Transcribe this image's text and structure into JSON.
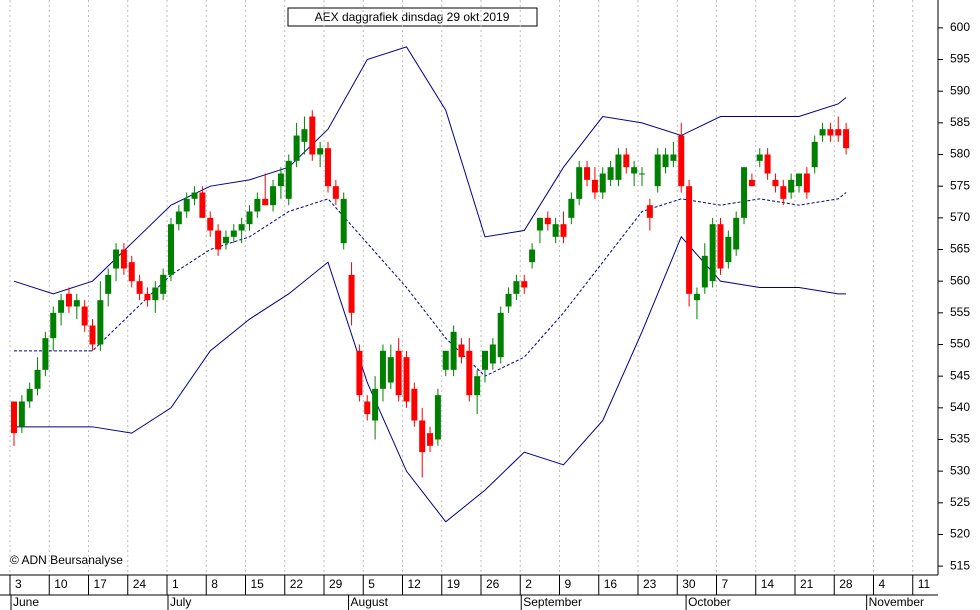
{
  "chart_data": {
    "type": "candlestick",
    "title": "AEX daggrafiek dinsdag 29 okt 2019",
    "annotation": "© ADN Beursanalyse",
    "up_color": "#008000",
    "down_color": "#ff0000",
    "grid": true,
    "categories": [
      "3",
      null,
      null,
      null,
      null,
      "10",
      null,
      null,
      null,
      null,
      "17",
      null,
      null,
      null,
      null,
      "24",
      null,
      null,
      null,
      null,
      "1",
      null,
      null,
      null,
      null,
      "8",
      null,
      null,
      null,
      null,
      "15",
      null,
      null,
      null,
      null,
      "22",
      null,
      null,
      null,
      null,
      "29",
      null,
      null,
      null,
      null,
      "5",
      null,
      null,
      null,
      null,
      "12",
      null,
      null,
      null,
      null,
      "19",
      null,
      null,
      null,
      null,
      "26",
      null,
      null,
      null,
      null,
      "2",
      null,
      null,
      null,
      null,
      "9",
      null,
      null,
      null,
      null,
      "16",
      null,
      null,
      null,
      null,
      "23",
      null,
      null,
      null,
      null,
      "30",
      null,
      null,
      null,
      null,
      "7",
      null,
      null,
      null,
      null,
      "14",
      null,
      null,
      null,
      null,
      "21",
      null,
      null,
      null,
      null,
      "28",
      null,
      null,
      null,
      null,
      "4",
      null,
      null,
      null,
      null,
      "11",
      null,
      null
    ],
    "month_ticks": [
      {
        "value": 0,
        "label": "June"
      },
      {
        "value": 20,
        "label": "July"
      },
      {
        "value": 43,
        "label": "August"
      },
      {
        "value": 65,
        "label": "September"
      },
      {
        "value": 86,
        "label": "October"
      },
      {
        "value": 109,
        "label": "November"
      }
    ],
    "open": [
      541,
      537,
      541,
      543,
      546,
      551,
      555,
      558,
      556,
      556,
      553,
      550,
      558,
      562,
      565,
      563,
      560,
      558,
      557,
      558,
      561,
      569,
      571,
      573,
      574,
      570,
      568,
      566,
      567,
      568,
      569,
      571,
      573,
      572,
      575,
      573,
      579,
      582,
      586,
      580,
      581,
      575,
      566,
      561,
      549,
      541,
      538,
      543,
      544,
      549,
      548,
      543,
      538,
      536,
      535,
      546,
      546,
      550,
      549,
      542,
      546,
      547,
      548,
      556,
      558,
      560,
      563,
      568,
      570,
      567,
      569,
      570,
      573,
      578,
      576,
      574,
      576,
      576,
      580,
      577,
      577,
      572,
      575,
      578,
      579,
      583,
      575,
      557,
      559,
      560,
      569,
      563,
      565,
      570,
      576,
      579,
      580,
      576,
      575,
      574,
      575,
      577,
      578,
      583,
      584,
      584,
      584,
      null,
      null,
      null,
      null,
      null,
      null,
      null,
      null,
      null,
      null,
      null
    ],
    "high": [
      541,
      542,
      544,
      548,
      552,
      556,
      558,
      559,
      558,
      557,
      554,
      560,
      562,
      566,
      566,
      564,
      561,
      559,
      560,
      562,
      570,
      572,
      574,
      575,
      575,
      571,
      569,
      568,
      569,
      570,
      572,
      574,
      577,
      576,
      578,
      580,
      585,
      586,
      587,
      582,
      582,
      576,
      574,
      563,
      550,
      542,
      545,
      550,
      550,
      551,
      549,
      544,
      540,
      537,
      543,
      549,
      553,
      551,
      551,
      546,
      549,
      551,
      556,
      559,
      561,
      561,
      566,
      570,
      571,
      570,
      571,
      574,
      579,
      579,
      578,
      578,
      579,
      581,
      581,
      579,
      578,
      573,
      581,
      581,
      582,
      585,
      576,
      559,
      566,
      570,
      570,
      568,
      571,
      578,
      577,
      581,
      581,
      577,
      576,
      577,
      577,
      578,
      583,
      585,
      585,
      586,
      585,
      null,
      null,
      null,
      null,
      null,
      null,
      null,
      null,
      null,
      null,
      null
    ],
    "low": [
      534,
      536,
      540,
      542,
      545,
      549,
      553,
      555,
      554,
      552,
      549,
      549,
      556,
      560,
      561,
      559,
      557,
      556,
      555,
      557,
      560,
      568,
      570,
      572,
      570,
      567,
      564,
      565,
      566,
      566,
      568,
      570,
      572,
      571,
      573,
      572,
      578,
      580,
      579,
      578,
      574,
      572,
      565,
      553,
      541,
      538,
      535,
      541,
      543,
      541,
      540,
      537,
      529,
      533,
      534,
      545,
      545,
      547,
      541,
      539,
      544,
      546,
      547,
      555,
      557,
      558,
      562,
      566,
      568,
      566,
      566,
      569,
      572,
      575,
      573,
      573,
      575,
      575,
      577,
      575,
      575,
      568,
      574,
      577,
      578,
      574,
      556,
      554,
      558,
      559,
      561,
      562,
      564,
      569,
      575,
      578,
      576,
      574,
      572,
      573,
      574,
      573,
      577,
      582,
      582,
      582,
      580,
      null,
      null,
      null,
      null,
      null,
      null,
      null,
      null,
      null,
      null,
      null
    ],
    "close": [
      536,
      541,
      543,
      546,
      551,
      555,
      557,
      556,
      557,
      553,
      550,
      557,
      561,
      565,
      562,
      560,
      558,
      557,
      559,
      561,
      569,
      571,
      573,
      574,
      570,
      568,
      565,
      567,
      568,
      569,
      571,
      573,
      572,
      575,
      577,
      579,
      583,
      584,
      580,
      581,
      575,
      573,
      573,
      555,
      542,
      539,
      543,
      549,
      548,
      542,
      541,
      538,
      533,
      534,
      542,
      549,
      552,
      548,
      542,
      545,
      549,
      550,
      555,
      558,
      560,
      559,
      565,
      570,
      569,
      569,
      567,
      573,
      578,
      576,
      574,
      577,
      578,
      580,
      578,
      578,
      577,
      570,
      580,
      580,
      580,
      575,
      558,
      558,
      564,
      569,
      562,
      567,
      570,
      578,
      575,
      580,
      577,
      575,
      573,
      576,
      577,
      574,
      582,
      584,
      583,
      583,
      581,
      null,
      null,
      null,
      null,
      null,
      null,
      null,
      null,
      null,
      null,
      null
    ],
    "bands": [
      {
        "color": "#00008b",
        "dashed": false,
        "x": [
          0,
          5,
          10,
          15,
          20,
          25,
          30,
          35,
          40,
          45,
          50,
          55,
          60,
          65,
          70,
          75,
          80,
          85,
          90,
          95,
          100,
          105,
          106
        ],
        "values": [
          560,
          558,
          560,
          566,
          572,
          575,
          576,
          578,
          584,
          595,
          597,
          587,
          567,
          568,
          578,
          586,
          585,
          583,
          586,
          586,
          586,
          588,
          589
        ]
      },
      {
        "color": "#00008b",
        "dashed": true,
        "x": [
          0,
          5,
          10,
          15,
          20,
          25,
          30,
          35,
          40,
          45,
          50,
          55,
          60,
          65,
          70,
          75,
          80,
          85,
          90,
          95,
          100,
          105,
          106
        ],
        "values": [
          549,
          549,
          549,
          555,
          561,
          565,
          567,
          571,
          573,
          566,
          559,
          551,
          545,
          548,
          555,
          563,
          571,
          573,
          572,
          573,
          572,
          573,
          574
        ]
      },
      {
        "color": "#00008b",
        "dashed": false,
        "x": [
          0,
          5,
          10,
          15,
          20,
          25,
          30,
          35,
          40,
          45,
          50,
          55,
          60,
          65,
          70,
          75,
          80,
          85,
          90,
          95,
          100,
          105,
          106
        ],
        "values": [
          537,
          537,
          537,
          536,
          540,
          549,
          554,
          558,
          563,
          544,
          530,
          522,
          527,
          533,
          531,
          538,
          552,
          567,
          560,
          559,
          559,
          558,
          558
        ]
      }
    ],
    "ylim": [
      513.6,
      604.4
    ],
    "yticks": [
      515,
      520,
      525,
      530,
      535,
      540,
      545,
      550,
      555,
      560,
      565,
      570,
      575,
      580,
      585,
      590,
      595,
      600
    ]
  }
}
